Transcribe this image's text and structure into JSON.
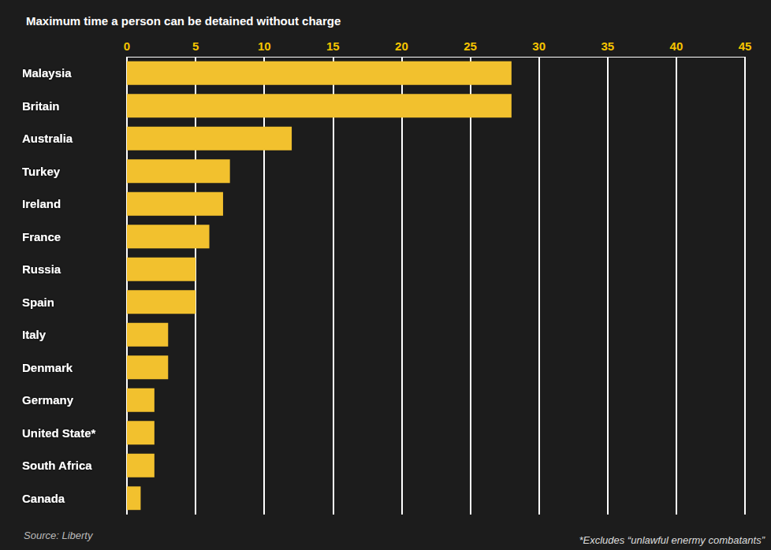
{
  "chart_data": {
    "type": "bar",
    "title": "Maximum time a person can be detained without charge",
    "categories": [
      "Malaysia",
      "Britain",
      "Australia",
      "Turkey",
      "Ireland",
      "France",
      "Russia",
      "Spain",
      "Italy",
      "Denmark",
      "Germany",
      "United State*",
      "South Africa",
      "Canada"
    ],
    "values": [
      28,
      28,
      12,
      7.5,
      7,
      6,
      5,
      5,
      3,
      3,
      2,
      2,
      2,
      1
    ],
    "color": "#f2c12e",
    "orientation": "horizontal",
    "xlim": [
      0,
      45
    ],
    "xticks": [
      0,
      5,
      10,
      15,
      20,
      25,
      30,
      35,
      40,
      45
    ],
    "grid": true,
    "annotations": [
      "Source: Liberty",
      "*Excludes “unlawful enermy combatants”"
    ]
  }
}
